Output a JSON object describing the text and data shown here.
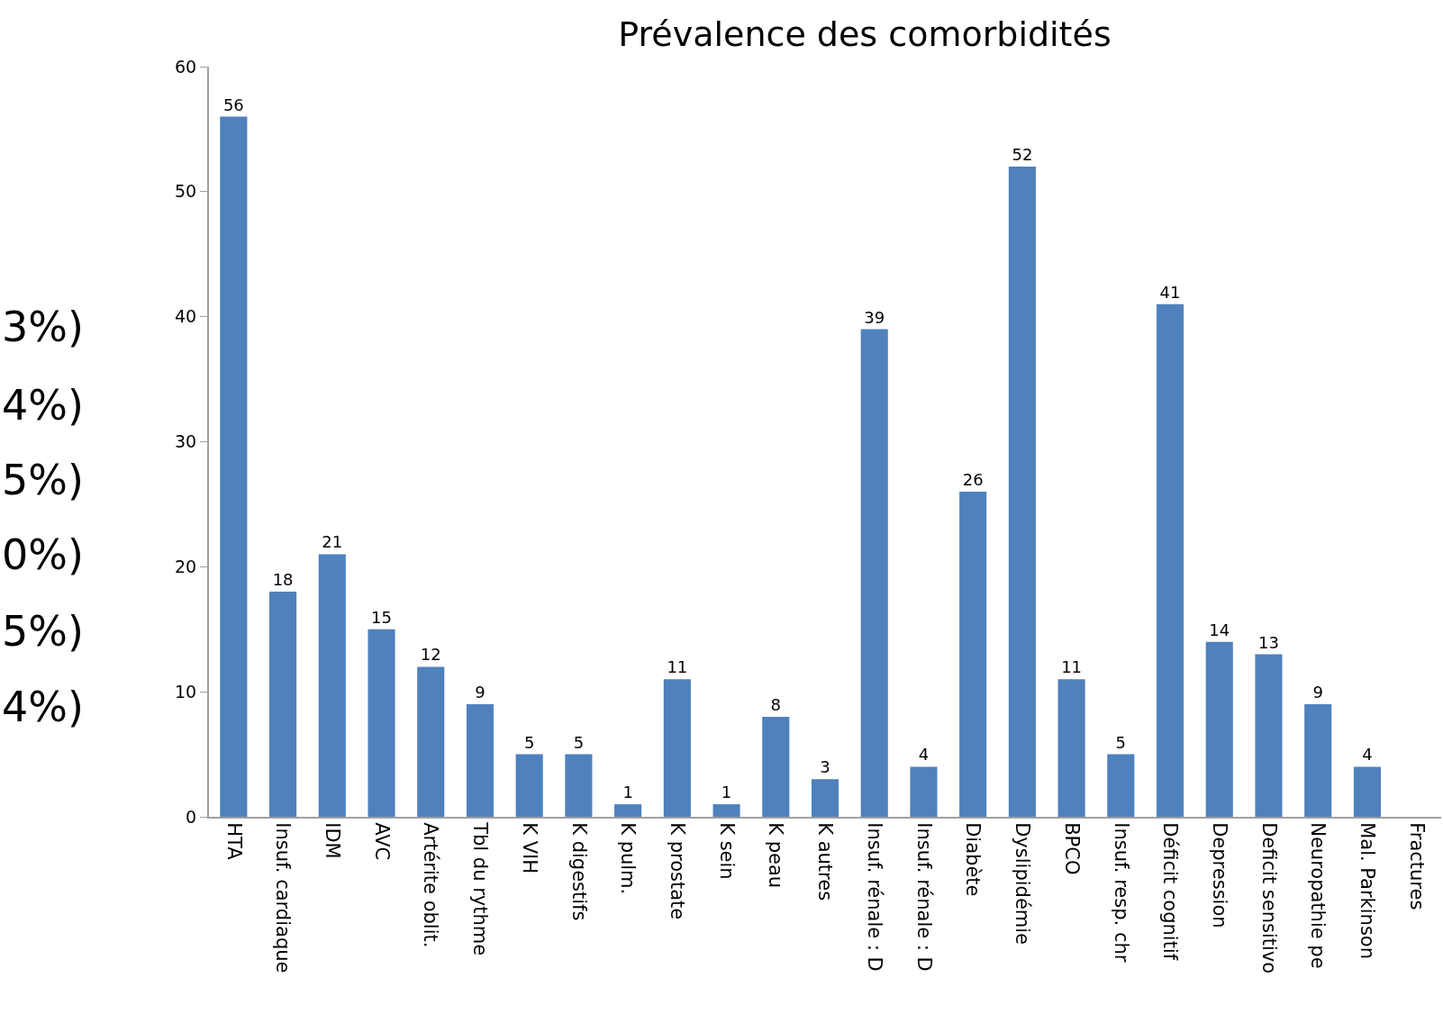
{
  "chart_data": {
    "type": "bar",
    "title": "Prévalence des comorbidités",
    "categories": [
      "HTA",
      "Insuf. cardiaque",
      "IDM",
      "AVC",
      "Artérite oblit.",
      "Tbl du rythme",
      "K VIH",
      "K digestifs",
      "K pulm.",
      "K prostate",
      "K sein",
      "K peau",
      "K autres",
      "Insuf. rénale : D",
      "Insuf. rénale : D",
      "Diabète",
      "Dyslipidémie",
      "BPCO",
      "Insuf. resp. chr",
      "Déficit cognitif",
      "Depression",
      "Deficit sensitivo",
      "Neuropathie pe",
      "Mal. Parkinson",
      "Fractures"
    ],
    "values": [
      56,
      18,
      21,
      15,
      12,
      9,
      5,
      5,
      1,
      11,
      1,
      8,
      3,
      39,
      4,
      26,
      52,
      11,
      5,
      41,
      14,
      13,
      9,
      4,
      null
    ],
    "color": "#4f81bd",
    "ylim": [
      0,
      60
    ],
    "yticks": [
      0,
      10,
      20,
      30,
      40,
      50,
      60
    ],
    "data_labels": true,
    "annotations": [
      "3%)",
      "4%)",
      "5%)",
      "0%)",
      "5%)",
      "4%)"
    ]
  }
}
